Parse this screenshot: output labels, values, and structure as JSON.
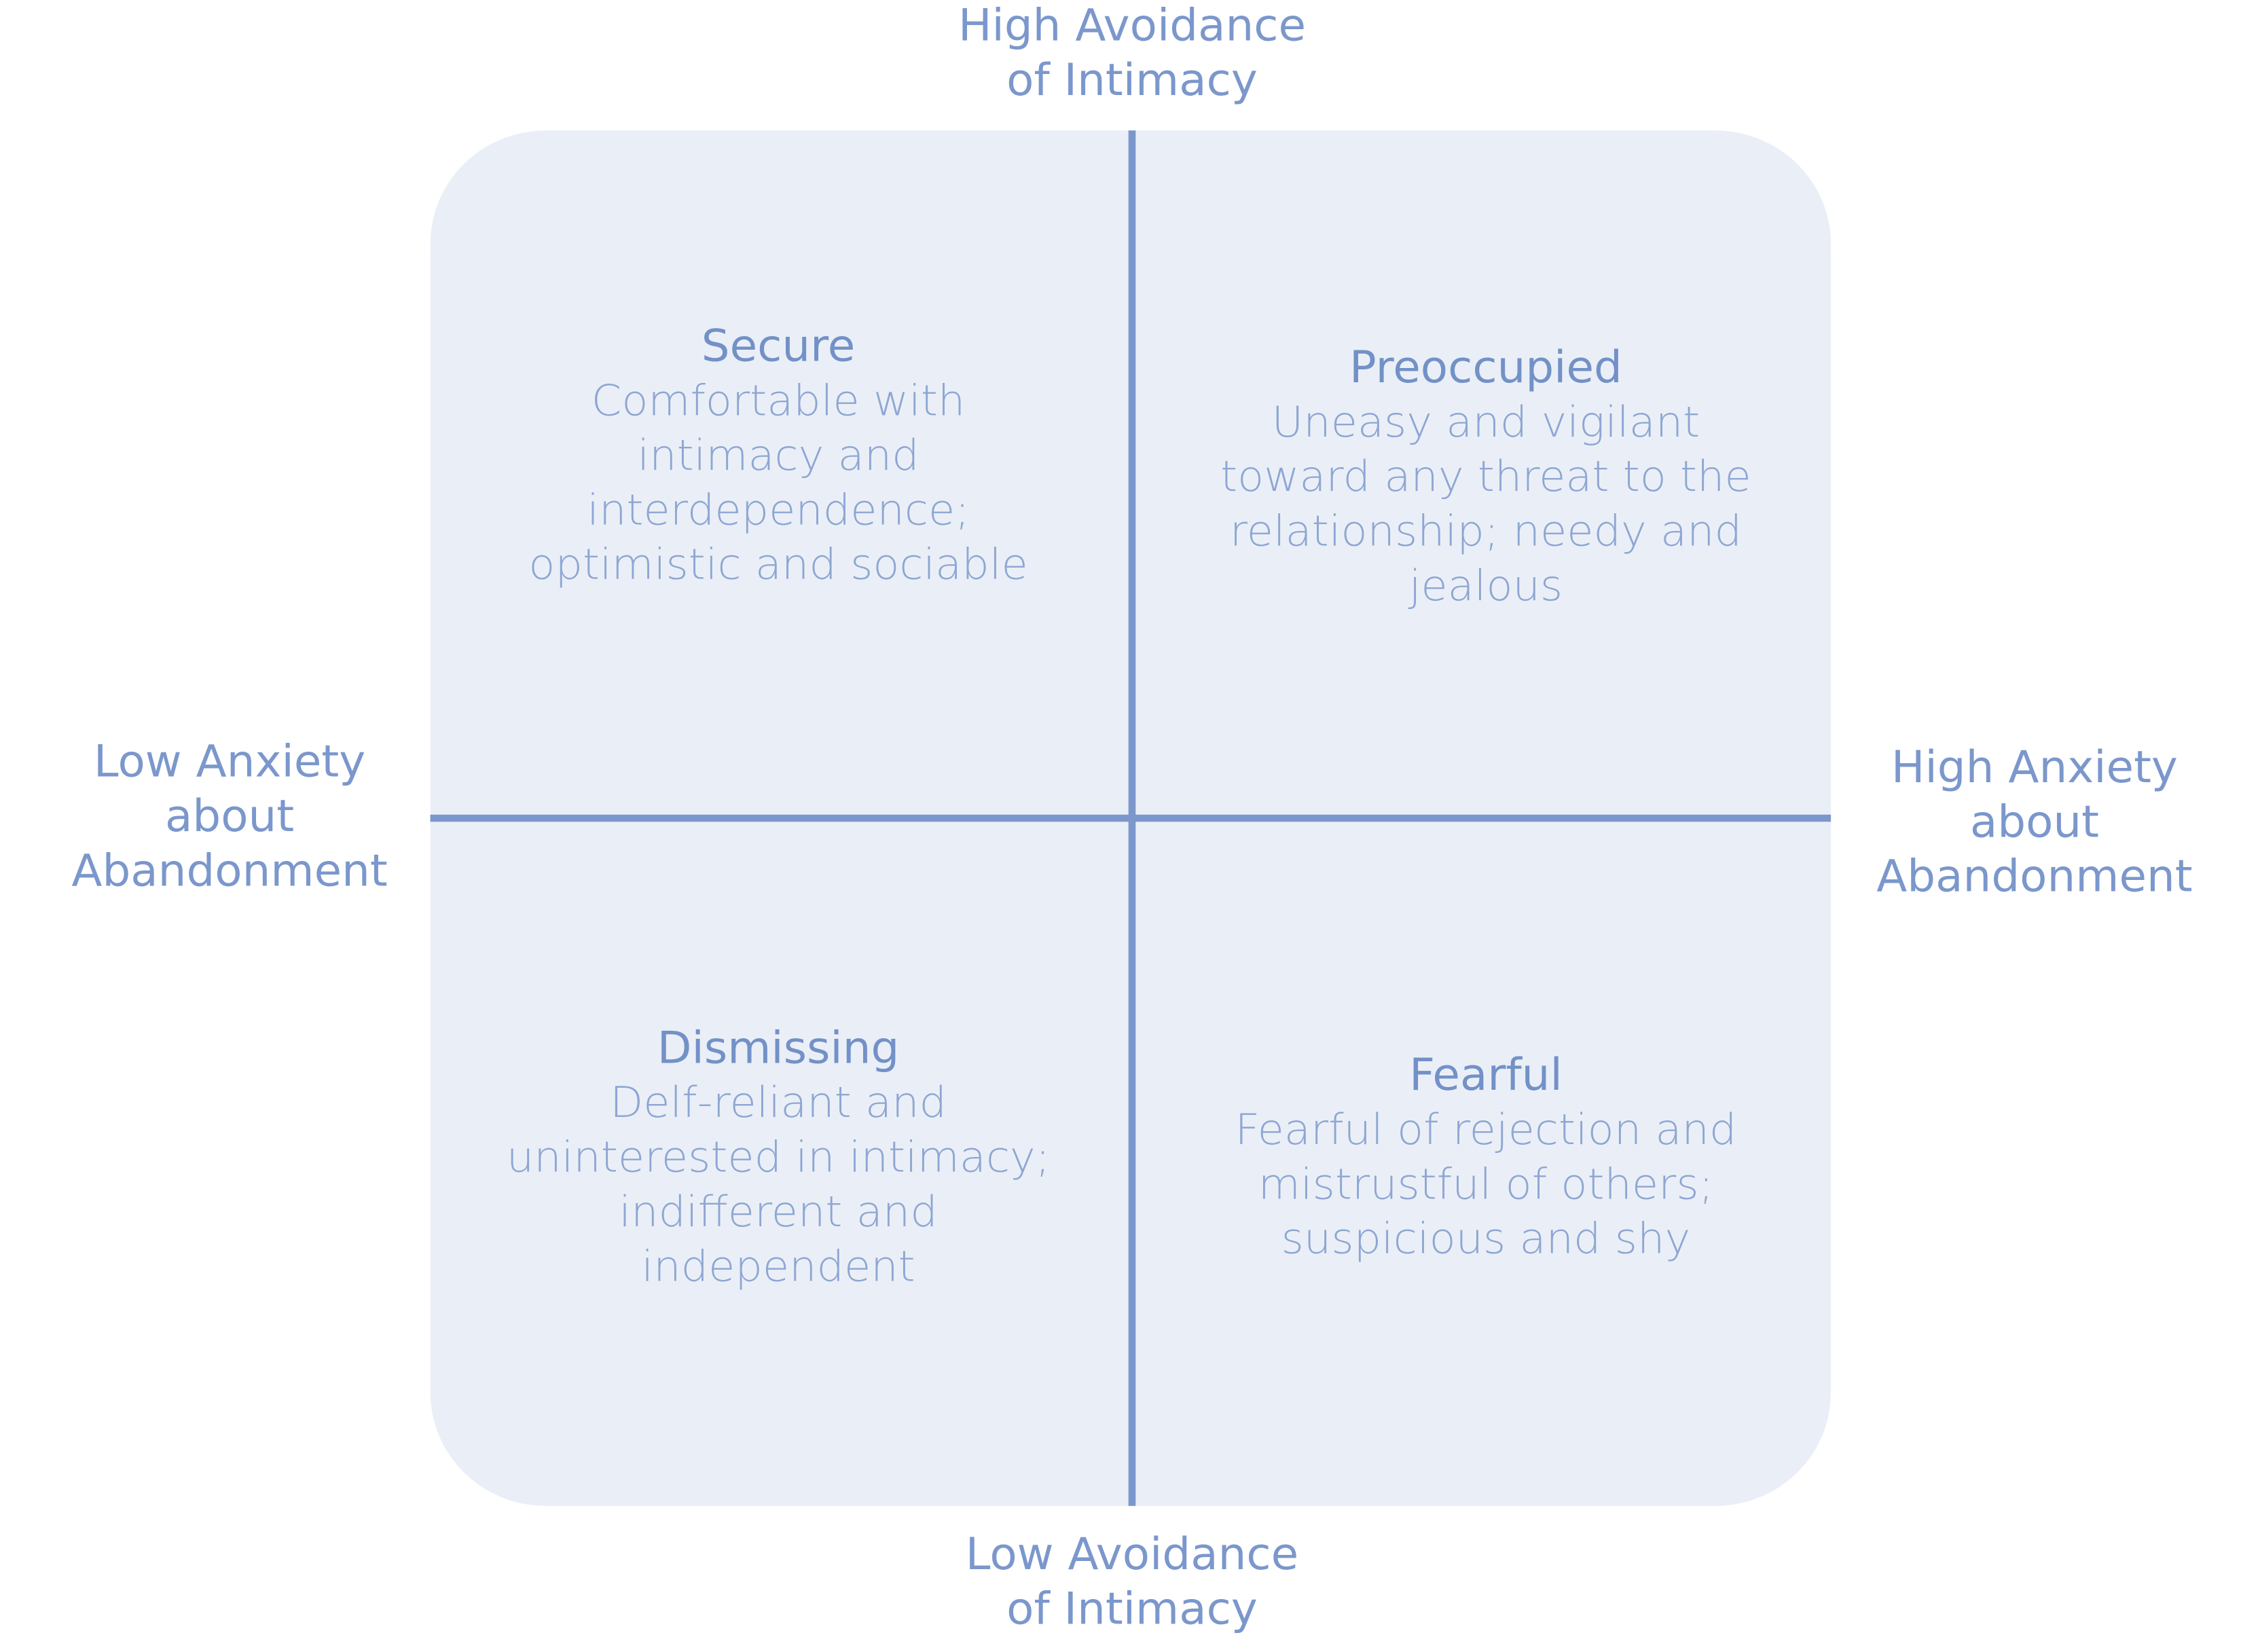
{
  "axes": {
    "top": [
      "High Avoidance",
      "of Intimacy"
    ],
    "bottom": [
      "Low Avoidance",
      "of Intimacy"
    ],
    "left": [
      "Low Anxiety",
      "about",
      "Abandonment"
    ],
    "right": [
      "High Anxiety",
      "about",
      "Abandonment"
    ]
  },
  "quadrants": [
    {
      "title": "Secure",
      "lines": [
        "Comfortable with",
        "intimacy and",
        "interdependence;",
        "optimistic and sociable"
      ]
    },
    {
      "title": "Preoccupied",
      "lines": [
        "Uneasy and vigilant",
        "toward any threat to the",
        "relationship; needy and",
        "jealous"
      ]
    },
    {
      "title": "Dismissing",
      "lines": [
        "Delf-reliant and",
        "uninterested in intimacy;",
        "indifferent and",
        "independent"
      ]
    },
    {
      "title": "Fearful",
      "lines": [
        "Fearful of rejection and",
        "mistrustful of others;",
        "suspicious and shy"
      ]
    }
  ]
}
